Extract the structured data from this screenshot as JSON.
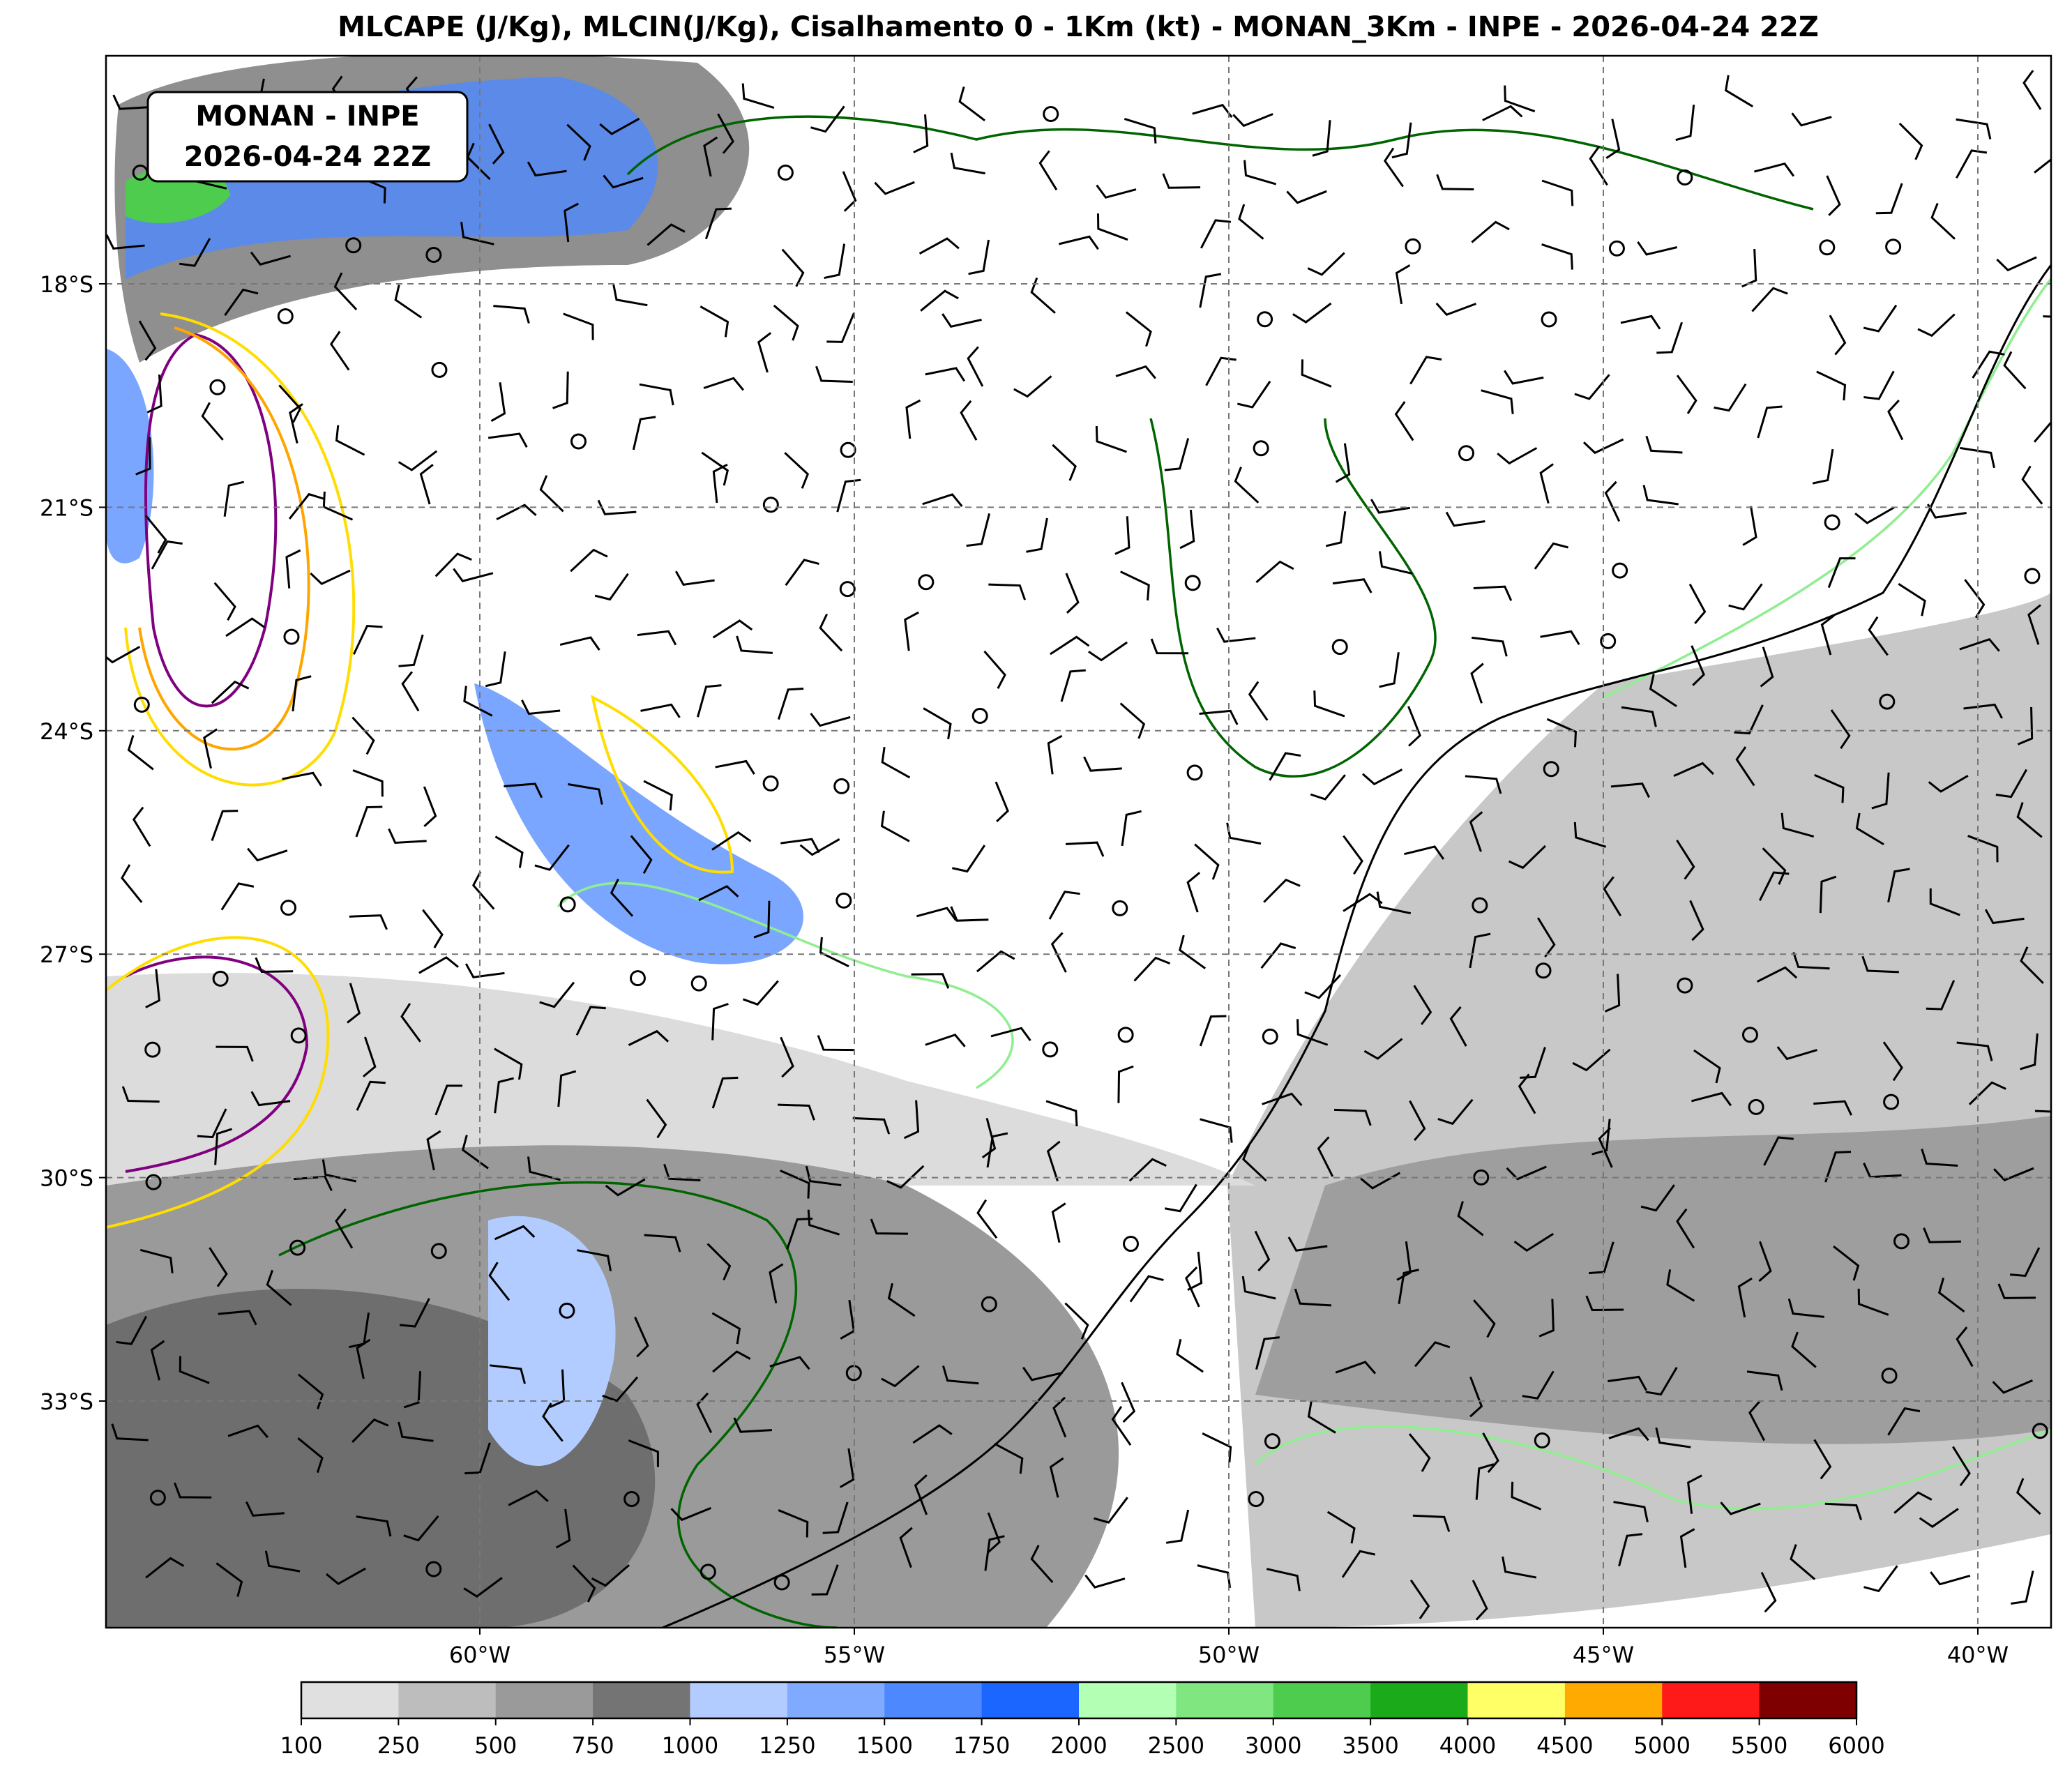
{
  "title": "MLCAPE (J/Kg), MLCIN(J/Kg), Cisalhamento 0 - 1Km (kt) - MONAN_3Km - INPE - 2026-04-24 22Z",
  "info_box": {
    "line1": "MONAN - INPE",
    "line2": "2026-04-24 22Z"
  },
  "map": {
    "latitudes": [
      {
        "value": -18,
        "label": "18°S"
      },
      {
        "value": -21,
        "label": "21°S"
      },
      {
        "value": -24,
        "label": "24°S"
      },
      {
        "value": -27,
        "label": "27°S"
      },
      {
        "value": -30,
        "label": "30°S"
      },
      {
        "value": -33,
        "label": "33°S"
      }
    ],
    "longitudes": [
      {
        "value": -60,
        "label": "60°W"
      },
      {
        "value": -55,
        "label": "55°W"
      },
      {
        "value": -50,
        "label": "50°W"
      },
      {
        "value": -45,
        "label": "45°W"
      },
      {
        "value": -40,
        "label": "40°W"
      }
    ],
    "grid": true
  },
  "colorbar": {
    "ticks": [
      100,
      250,
      500,
      750,
      1000,
      1250,
      1500,
      1750,
      2000,
      2500,
      3000,
      3500,
      4000,
      4500,
      5000,
      5500,
      6000
    ],
    "colors": [
      "#e0e0e0",
      "#bdbdbd",
      "#9a9a9a",
      "#747474",
      "#b3ccff",
      "#80aaff",
      "#4d88ff",
      "#1a66ff",
      "#b3ffb3",
      "#80e680",
      "#4dcc4d",
      "#1aaa1a",
      "#ffff66",
      "#ffaa00",
      "#ff1a1a",
      "#7f0000"
    ]
  }
}
